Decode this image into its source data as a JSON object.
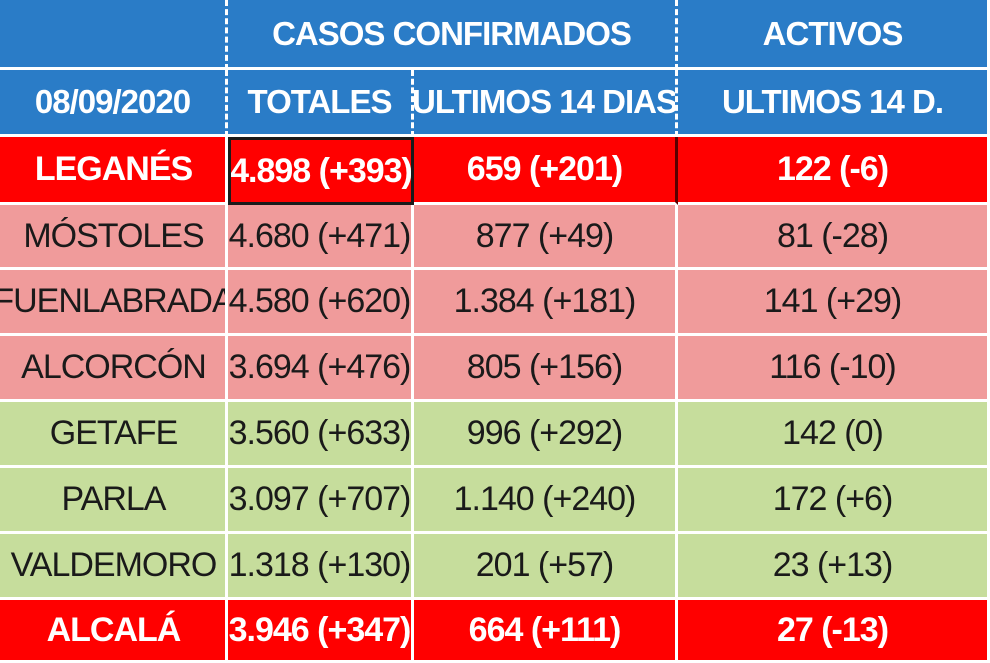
{
  "header": {
    "group_confirmed": "CASOS  CONFIRMADOS",
    "group_active": "ACTIVOS",
    "date": "08/09/2020",
    "col_totales": "TOTALES",
    "col_ultimos14": "ULTIMOS 14 DIAS",
    "col_activos14": "ULTIMOS 14 D."
  },
  "rows": [
    {
      "city": "LEGANÉS",
      "totales": "4.898 (+393)",
      "ultimos14": "659 (+201)",
      "activos": "122 (-6)",
      "color": "#ff0000"
    },
    {
      "city": "MÓSTOLES",
      "totales": "4.680 (+471)",
      "ultimos14": "877 (+49)",
      "activos": "81 (-28)",
      "color": "#f09b9b"
    },
    {
      "city": "FUENLABRADA",
      "totales": "4.580 (+620)",
      "ultimos14": "1.384 (+181)",
      "activos": "141 (+29)",
      "color": "#f09b9b"
    },
    {
      "city": "ALCORCÓN",
      "totales": "3.694 (+476)",
      "ultimos14": "805 (+156)",
      "activos": "116 (-10)",
      "color": "#f09b9b"
    },
    {
      "city": "GETAFE",
      "totales": "3.560 (+633)",
      "ultimos14": "996 (+292)",
      "activos": "142 (0)",
      "color": "#c6dd9c"
    },
    {
      "city": "PARLA",
      "totales": "3.097 (+707)",
      "ultimos14": "1.140 (+240)",
      "activos": "172 (+6)",
      "color": "#c6dd9c"
    },
    {
      "city": "VALDEMORO",
      "totales": "1.318 (+130)",
      "ultimos14": "201 (+57)",
      "activos": "23 (+13)",
      "color": "#c6dd9c"
    },
    {
      "city": "ALCALÁ",
      "totales": "3.946 (+347)",
      "ultimos14": "664 (+111)",
      "activos": "27 (-13)",
      "color": "#ff0000"
    }
  ]
}
